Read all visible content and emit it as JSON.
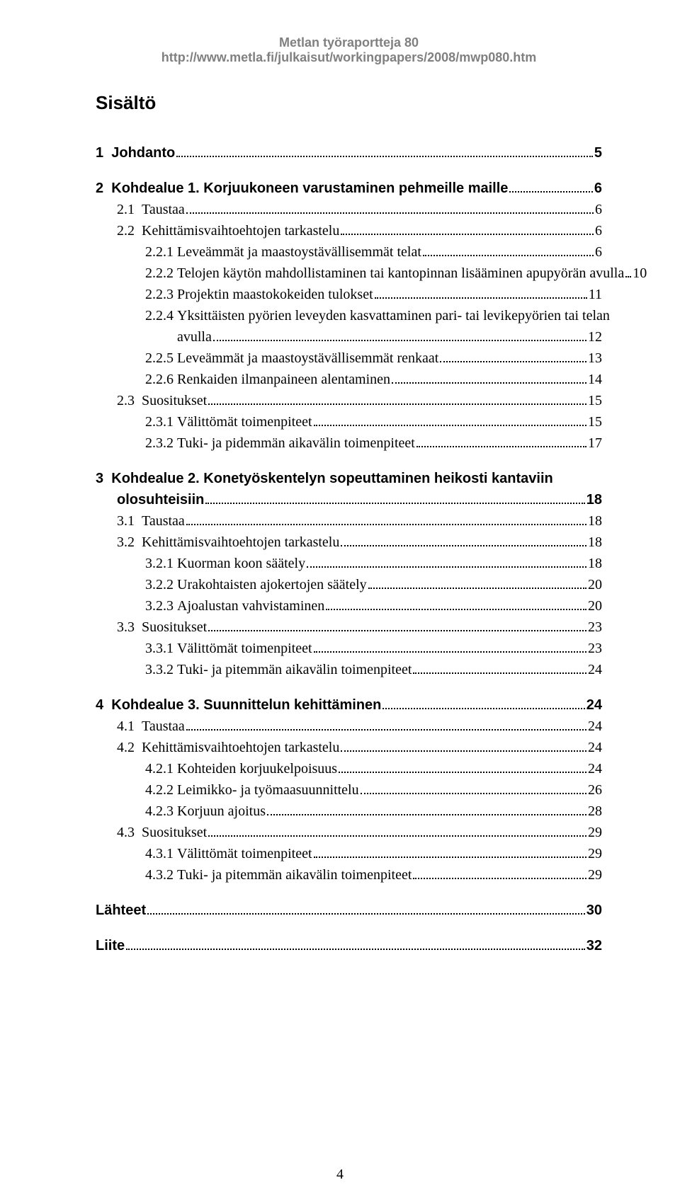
{
  "header": {
    "line1": "Metlan työraportteja 80",
    "line2": "http://www.metla.fi/julkaisut/workingpapers/2008/mwp080.htm"
  },
  "title": "Sisältö",
  "pageNumber": "4",
  "toc": [
    {
      "level": 0,
      "num": "1",
      "label": "Johdanto",
      "page": "5"
    },
    {
      "level": 0,
      "num": "2",
      "label": "Kohdealue 1. Korjuukoneen varustaminen pehmeille maille",
      "page": "6"
    },
    {
      "level": 1,
      "num": "2.1",
      "label": "Taustaa",
      "page": "6"
    },
    {
      "level": 1,
      "num": "2.2",
      "label": "Kehittämisvaihtoehtojen tarkastelu",
      "page": "6"
    },
    {
      "level": 2,
      "num": "2.2.1",
      "label": "Leveämmät ja maastoystävällisemmät telat",
      "page": "6"
    },
    {
      "level": 2,
      "num": "2.2.2",
      "label": "Telojen käytön mahdollistaminen tai kantopinnan lisääminen apupyörän avulla",
      "page": "10"
    },
    {
      "level": 2,
      "num": "2.2.3",
      "label": "Projektin maastokokeiden tulokset",
      "page": "11"
    },
    {
      "level": 2,
      "num": "2.2.4",
      "label": "Yksittäisten pyörien leveyden kasvattaminen pari- tai levikepyörien tai telan",
      "wrap": "avulla",
      "page": "12"
    },
    {
      "level": 2,
      "num": "2.2.5",
      "label": "Leveämmät ja maastoystävällisemmät renkaat",
      "page": "13"
    },
    {
      "level": 2,
      "num": "2.2.6",
      "label": "Renkaiden ilmanpaineen alentaminen",
      "page": "14"
    },
    {
      "level": 1,
      "num": "2.3",
      "label": "Suositukset",
      "page": "15"
    },
    {
      "level": 2,
      "num": "2.3.1",
      "label": "Välittömät toimenpiteet",
      "page": "15"
    },
    {
      "level": 2,
      "num": "2.3.2",
      "label": "Tuki- ja pidemmän aikavälin toimenpiteet",
      "page": "17"
    },
    {
      "level": 0,
      "num": "3",
      "label": "Kohdealue 2. Konetyöskentelyn sopeuttaminen heikosti kantaviin",
      "wrap": "olosuhteisiin",
      "wrapLevel": "lvl0-wrap",
      "page": "18"
    },
    {
      "level": 1,
      "num": "3.1",
      "label": "Taustaa",
      "page": "18"
    },
    {
      "level": 1,
      "num": "3.2",
      "label": "Kehittämisvaihtoehtojen tarkastelu",
      "page": "18"
    },
    {
      "level": 2,
      "num": "3.2.1",
      "label": "Kuorman koon säätely",
      "page": "18"
    },
    {
      "level": 2,
      "num": "3.2.2",
      "label": "Urakohtaisten ajokertojen säätely",
      "page": "20"
    },
    {
      "level": 2,
      "num": "3.2.3",
      "label": "Ajoalustan vahvistaminen",
      "page": "20"
    },
    {
      "level": 1,
      "num": "3.3",
      "label": "Suositukset",
      "page": "23"
    },
    {
      "level": 2,
      "num": "3.3.1",
      "label": "Välittömät toimenpiteet",
      "page": "23"
    },
    {
      "level": 2,
      "num": "3.3.2",
      "label": "Tuki- ja pitemmän aikavälin toimenpiteet",
      "page": "24"
    },
    {
      "level": 0,
      "num": "4",
      "label": "Kohdealue 3. Suunnittelun kehittäminen",
      "page": "24"
    },
    {
      "level": 1,
      "num": "4.1",
      "label": "Taustaa",
      "page": "24"
    },
    {
      "level": 1,
      "num": "4.2",
      "label": "Kehittämisvaihtoehtojen tarkastelu",
      "page": "24"
    },
    {
      "level": 2,
      "num": "4.2.1",
      "label": "Kohteiden korjuukelpoisuus",
      "page": "24"
    },
    {
      "level": 2,
      "num": "4.2.2",
      "label": "Leimikko- ja työmaasuunnittelu",
      "page": "26"
    },
    {
      "level": 2,
      "num": "4.2.3",
      "label": "Korjuun ajoitus",
      "page": "28"
    },
    {
      "level": 1,
      "num": "4.3",
      "label": "Suositukset",
      "page": "29"
    },
    {
      "level": 2,
      "num": "4.3.1",
      "label": "Välittömät toimenpiteet",
      "page": "29"
    },
    {
      "level": 2,
      "num": "4.3.2",
      "label": "Tuki- ja pitemmän aikavälin toimenpiteet",
      "page": "29"
    },
    {
      "level": 0,
      "num": "",
      "label": "Lähteet",
      "page": "30"
    },
    {
      "level": 0,
      "num": "",
      "label": "Liite",
      "page": "32"
    }
  ]
}
